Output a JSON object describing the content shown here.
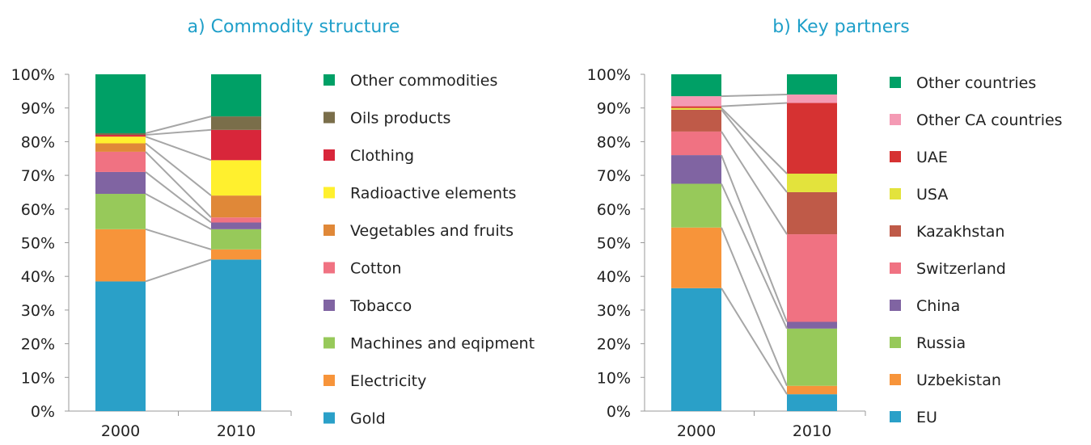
{
  "chart_data": [
    {
      "type": "bar",
      "stacked": true,
      "title": "a) Commodity structure",
      "categories": [
        "2000",
        "2010"
      ],
      "yticks": [
        "0%",
        "10%",
        "20%",
        "30%",
        "40%",
        "50%",
        "60%",
        "70%",
        "80%",
        "90%",
        "100%"
      ],
      "ylim": [
        0,
        100
      ],
      "legend_position": "right",
      "series": [
        {
          "name": "Gold",
          "color": "#2aa0c8",
          "values": [
            38.5,
            45
          ]
        },
        {
          "name": "Electricity",
          "color": "#f7943a",
          "values": [
            15.5,
            3
          ]
        },
        {
          "name": "Machines and eqipment",
          "color": "#97c95a",
          "values": [
            10.5,
            6
          ]
        },
        {
          "name": "Tobacco",
          "color": "#8064a2",
          "values": [
            6.5,
            2
          ]
        },
        {
          "name": "Cotton",
          "color": "#f07282",
          "values": [
            6,
            1.5
          ]
        },
        {
          "name": "Vegetables and fruits",
          "color": "#e08838",
          "values": [
            2.5,
            6.5
          ]
        },
        {
          "name": "Radioactive elements",
          "color": "#fff02e",
          "values": [
            2,
            10.5
          ]
        },
        {
          "name": "Clothing",
          "color": "#d8263a",
          "values": [
            0.5,
            9
          ]
        },
        {
          "name": "Oils products",
          "color": "#7a6e4a",
          "values": [
            0.5,
            4
          ]
        },
        {
          "name": "Other commodities",
          "color": "#00a066",
          "values": [
            17.5,
            12.5
          ]
        }
      ]
    },
    {
      "type": "bar",
      "stacked": true,
      "title": "b) Key partners",
      "categories": [
        "2000",
        "2010"
      ],
      "yticks": [
        "0%",
        "10%",
        "20%",
        "30%",
        "40%",
        "50%",
        "60%",
        "70%",
        "80%",
        "90%",
        "100%"
      ],
      "ylim": [
        0,
        100
      ],
      "legend_position": "right",
      "series": [
        {
          "name": "EU",
          "color": "#2aa0c8",
          "values": [
            36.5,
            5
          ]
        },
        {
          "name": "Uzbekistan",
          "color": "#f7943a",
          "values": [
            18,
            2.5
          ]
        },
        {
          "name": "Russia",
          "color": "#97c95a",
          "values": [
            13,
            17
          ]
        },
        {
          "name": "China",
          "color": "#8064a2",
          "values": [
            8.5,
            2
          ]
        },
        {
          "name": "Switzerland",
          "color": "#f07282",
          "values": [
            7,
            26
          ]
        },
        {
          "name": "Kazakhstan",
          "color": "#bf5a48",
          "values": [
            6.5,
            12.5
          ]
        },
        {
          "name": "USA",
          "color": "#e3e33c",
          "values": [
            0.5,
            5.5
          ]
        },
        {
          "name": "UAE",
          "color": "#d63232",
          "values": [
            0.5,
            21
          ]
        },
        {
          "name": "Other CA countries",
          "color": "#f49ab4",
          "values": [
            3,
            2.5
          ]
        },
        {
          "name": "Other countries",
          "color": "#00a066",
          "values": [
            6.5,
            6
          ]
        }
      ]
    }
  ]
}
